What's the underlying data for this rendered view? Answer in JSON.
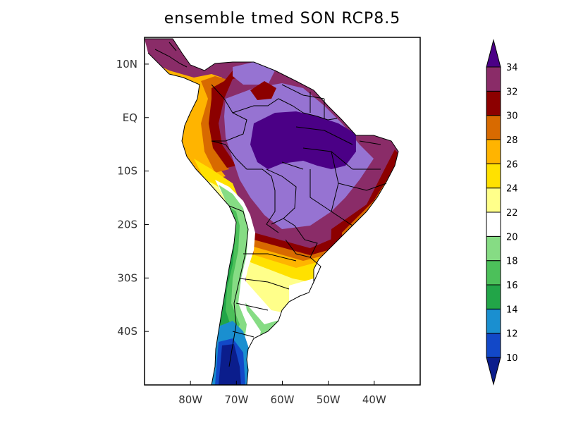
{
  "title": "ensemble tmed SON RCP8.5",
  "lat_ticks": [
    {
      "label": "10N",
      "lat": 10
    },
    {
      "label": "EQ",
      "lat": 0
    },
    {
      "label": "10S",
      "lat": -10
    },
    {
      "label": "20S",
      "lat": -20
    },
    {
      "label": "30S",
      "lat": -30
    },
    {
      "label": "40S",
      "lat": -40
    }
  ],
  "lon_ticks": [
    {
      "label": "80W",
      "lon": -80
    },
    {
      "label": "70W",
      "lon": -70
    },
    {
      "label": "60W",
      "lon": -60
    },
    {
      "label": "50W",
      "lon": -50
    },
    {
      "label": "40W",
      "lon": -40
    }
  ],
  "map_extent": {
    "lon_min": -90,
    "lon_max": -30,
    "lat_min": -50,
    "lat_max": 15
  },
  "colorbar": {
    "labels": [
      "10",
      "12",
      "14",
      "16",
      "18",
      "20",
      "22",
      "24",
      "26",
      "28",
      "30",
      "32",
      "34"
    ],
    "colors": [
      "#0b1d8c",
      "#1248c8",
      "#1a8fd0",
      "#22a548",
      "#4cc05a",
      "#86dc84",
      "#ffffff",
      "#ffff8a",
      "#ffe100",
      "#ffb400",
      "#d86a00",
      "#8c0000",
      "#8a2c68",
      "#9673d2",
      "#4b0086"
    ]
  }
}
